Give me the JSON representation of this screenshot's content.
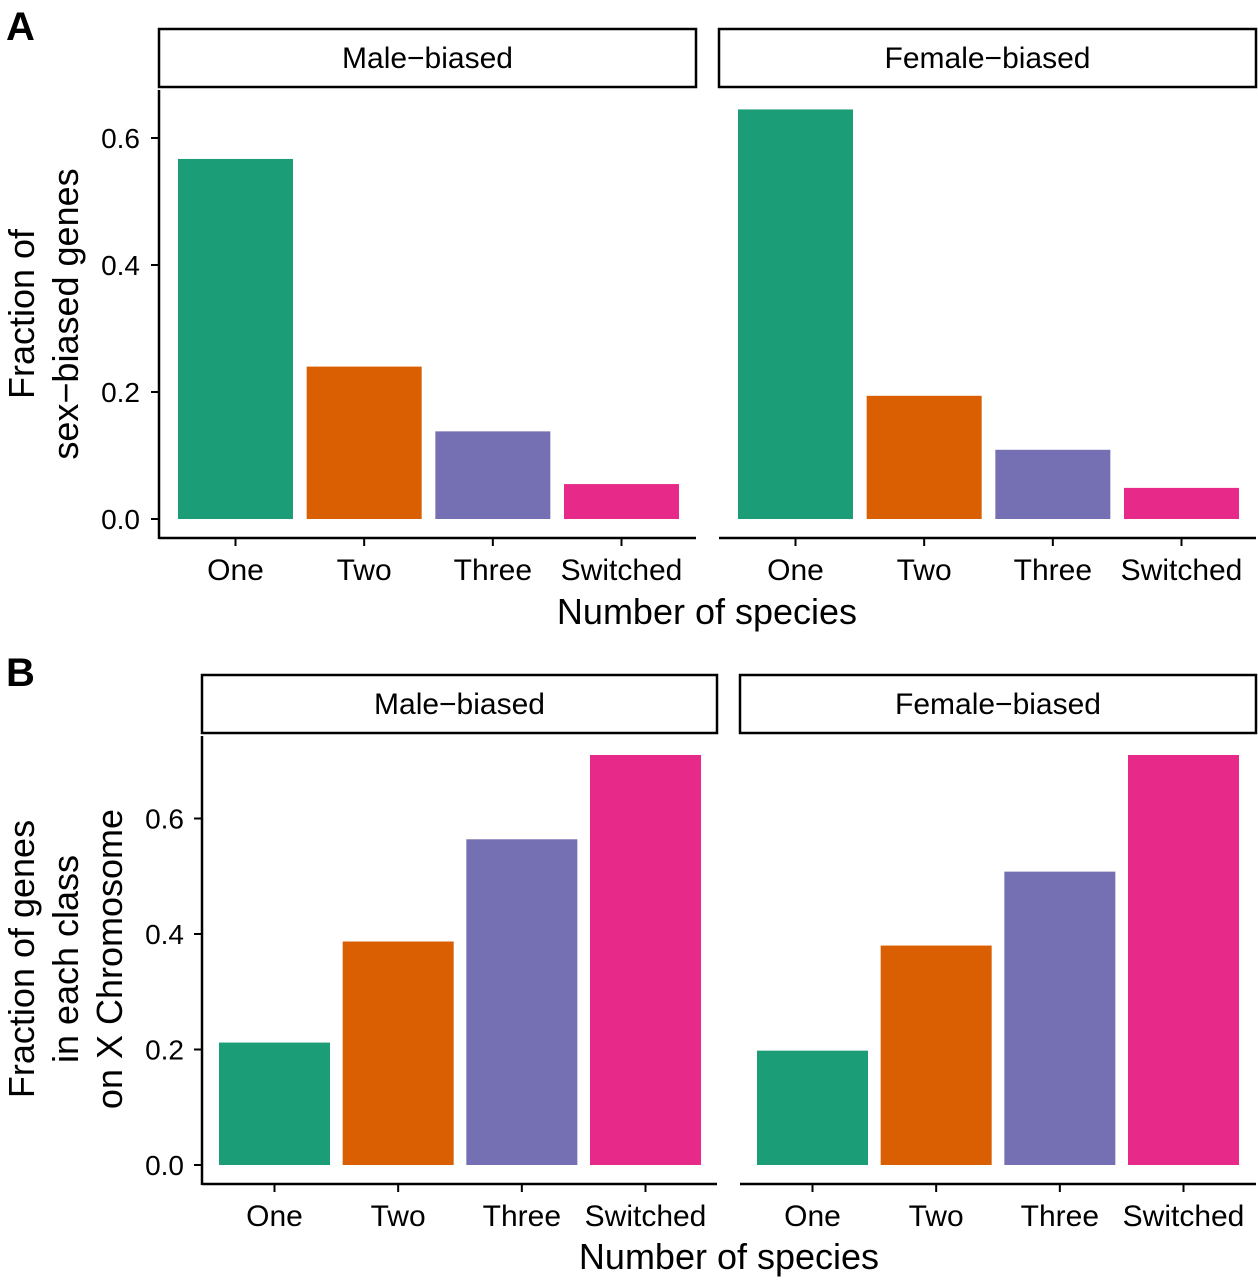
{
  "colors": {
    "One": "#1b9e77",
    "Two": "#d95f02",
    "Three": "#7570b3",
    "Switched": "#e7298a",
    "axis": "#000000",
    "strip_border": "#000000",
    "background": "#ffffff"
  },
  "chart_data": [
    {
      "type": "bar",
      "panel_label": "A",
      "xlabel": "Number of species",
      "ylabel_lines": [
        "Fraction of",
        "sex−biased genes"
      ],
      "ylim": [
        0,
        0.67
      ],
      "yticks": [
        0.0,
        0.2,
        0.4,
        0.6
      ],
      "ytick_labels": [
        "0.0",
        "0.2",
        "0.4",
        "0.6"
      ],
      "categories": [
        "One",
        "Two",
        "Three",
        "Switched"
      ],
      "facets": [
        {
          "name": "Male−biased",
          "values": [
            0.567,
            0.24,
            0.138,
            0.055
          ]
        },
        {
          "name": "Female−biased",
          "values": [
            0.645,
            0.194,
            0.109,
            0.049
          ]
        }
      ],
      "grid": false,
      "legend": "none"
    },
    {
      "type": "bar",
      "panel_label": "B",
      "xlabel": "Number of species",
      "ylabel_lines": [
        "Fraction of genes",
        "in each class",
        "on X Chromosome"
      ],
      "ylim": [
        0,
        0.72
      ],
      "yticks": [
        0.0,
        0.2,
        0.4,
        0.6
      ],
      "ytick_labels": [
        "0.0",
        "0.2",
        "0.4",
        "0.6"
      ],
      "categories": [
        "One",
        "Two",
        "Three",
        "Switched"
      ],
      "facets": [
        {
          "name": "Male−biased",
          "values": [
            0.212,
            0.387,
            0.564,
            0.71
          ]
        },
        {
          "name": "Female−biased",
          "values": [
            0.198,
            0.38,
            0.508,
            0.71
          ]
        }
      ],
      "grid": false,
      "legend": "none"
    }
  ]
}
